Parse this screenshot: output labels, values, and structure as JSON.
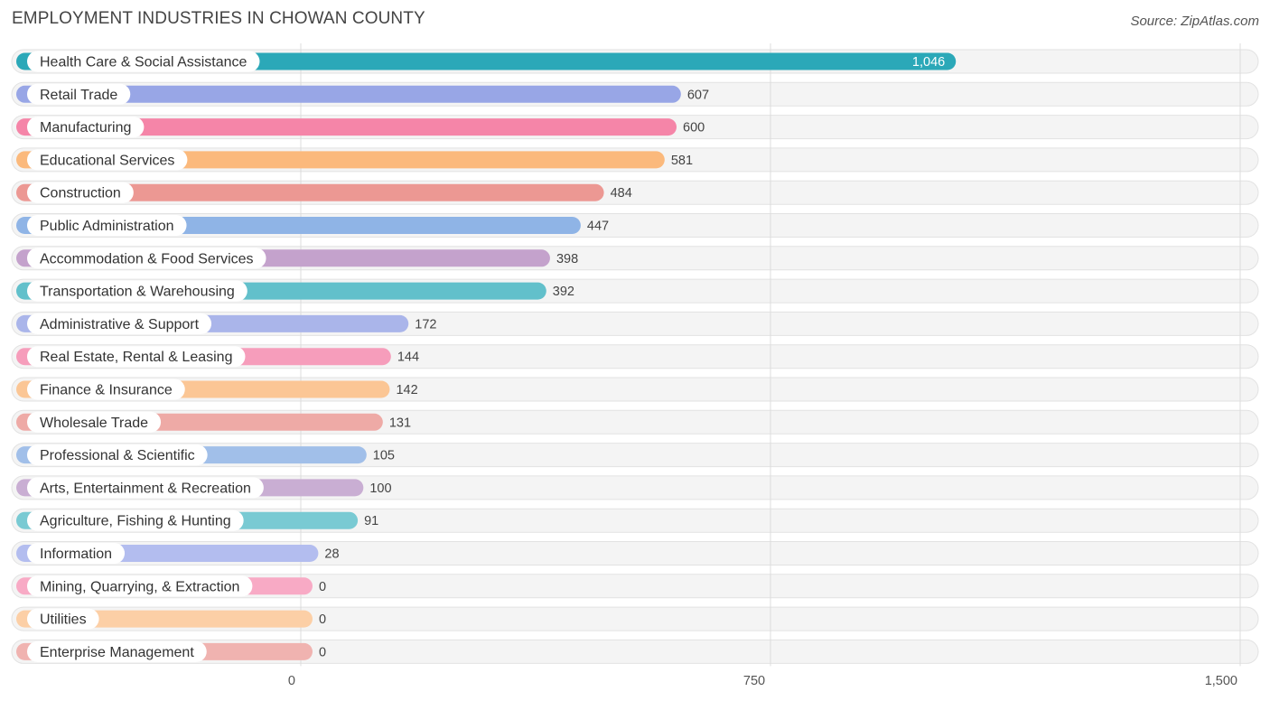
{
  "header": {
    "title": "EMPLOYMENT INDUSTRIES IN CHOWAN COUNTY",
    "source": "Source: ZipAtlas.com"
  },
  "chart_data": {
    "type": "bar",
    "orientation": "horizontal",
    "title": "EMPLOYMENT INDUSTRIES IN CHOWAN COUNTY",
    "xlabel": "",
    "ylabel": "",
    "xlim": [
      0,
      1500
    ],
    "ticks": [
      {
        "value": 0,
        "label": "0"
      },
      {
        "value": 750,
        "label": "750"
      },
      {
        "value": 1500,
        "label": "1,500"
      }
    ],
    "grid": true,
    "categories": [
      {
        "name": "Health Care & Social Assistance",
        "value": 1046,
        "label": "1,046",
        "color": "#2ba8b8"
      },
      {
        "name": "Retail Trade",
        "value": 607,
        "label": "607",
        "color": "#98a6e6"
      },
      {
        "name": "Manufacturing",
        "value": 600,
        "label": "600",
        "color": "#f585a8"
      },
      {
        "name": "Educational Services",
        "value": 581,
        "label": "581",
        "color": "#fbb97c"
      },
      {
        "name": "Construction",
        "value": 484,
        "label": "484",
        "color": "#ec9893"
      },
      {
        "name": "Public Administration",
        "value": 447,
        "label": "447",
        "color": "#8fb4e6"
      },
      {
        "name": "Accommodation & Food Services",
        "value": 398,
        "label": "398",
        "color": "#c4a2cc"
      },
      {
        "name": "Transportation & Warehousing",
        "value": 392,
        "label": "392",
        "color": "#62c0cb"
      },
      {
        "name": "Administrative & Support",
        "value": 172,
        "label": "172",
        "color": "#aab5ea"
      },
      {
        "name": "Real Estate, Rental & Leasing",
        "value": 144,
        "label": "144",
        "color": "#f69dbb"
      },
      {
        "name": "Finance & Insurance",
        "value": 142,
        "label": "142",
        "color": "#fbc695"
      },
      {
        "name": "Wholesale Trade",
        "value": 131,
        "label": "131",
        "color": "#eeaaa6"
      },
      {
        "name": "Professional & Scientific",
        "value": 105,
        "label": "105",
        "color": "#a1bfe9"
      },
      {
        "name": "Arts, Entertainment & Recreation",
        "value": 100,
        "label": "100",
        "color": "#c9aed3"
      },
      {
        "name": "Agriculture, Fishing & Hunting",
        "value": 91,
        "label": "91",
        "color": "#79cad3"
      },
      {
        "name": "Information",
        "value": 28,
        "label": "28",
        "color": "#b3bdef"
      },
      {
        "name": "Mining, Quarrying, & Extraction",
        "value": 0,
        "label": "0",
        "color": "#f8aac5"
      },
      {
        "name": "Utilities",
        "value": 0,
        "label": "0",
        "color": "#fccfa6"
      },
      {
        "name": "Enterprise Management",
        "value": 0,
        "label": "0",
        "color": "#f0b3b0"
      }
    ]
  }
}
